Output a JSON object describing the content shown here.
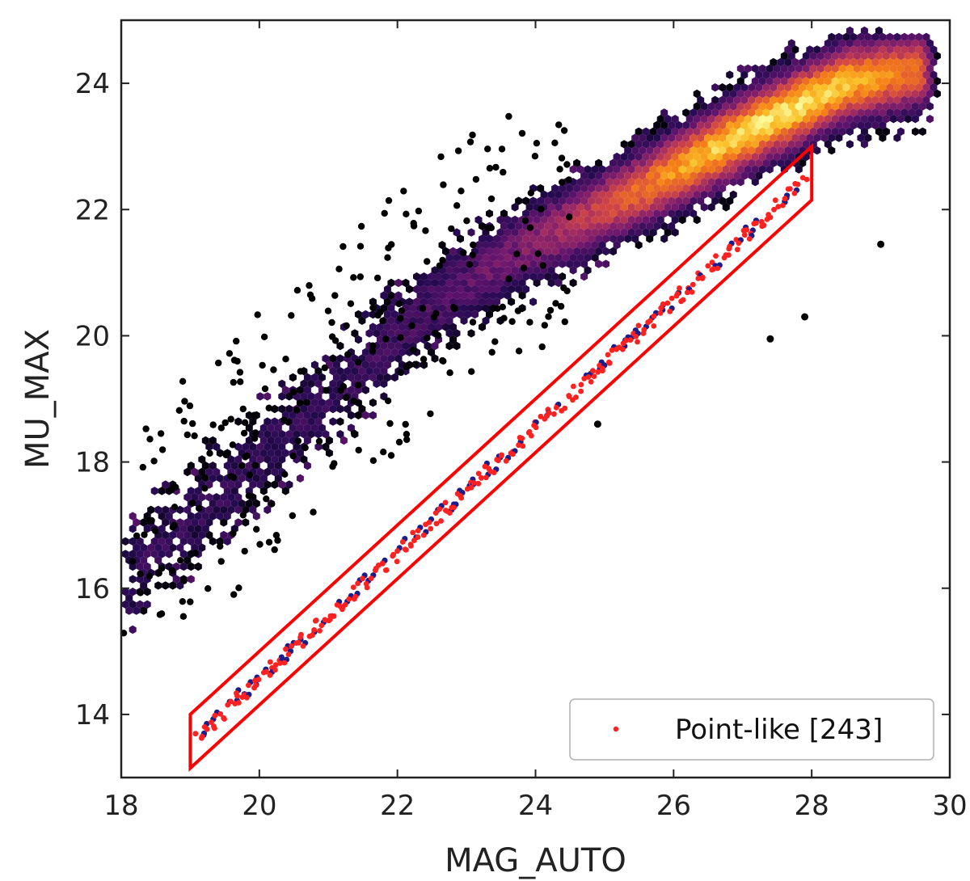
{
  "chart_data": {
    "type": "hexbin-scatter",
    "xlabel": "MAG_AUTO",
    "ylabel": "MU_MAX",
    "xlim": [
      18,
      30
    ],
    "ylim": [
      13,
      25
    ],
    "x_ticks": [
      "18",
      "20",
      "22",
      "24",
      "26",
      "28",
      "30"
    ],
    "y_ticks": [
      "14",
      "16",
      "18",
      "20",
      "22",
      "24"
    ],
    "grid": false,
    "colormap": "inferno",
    "density_ridge": {
      "description_points": [
        [
          19.5,
          17.6
        ],
        [
          21.0,
          19.0
        ],
        [
          22.5,
          20.5
        ],
        [
          24.0,
          21.5
        ],
        [
          25.5,
          22.3
        ],
        [
          27.0,
          23.2
        ],
        [
          28.5,
          24.0
        ],
        [
          29.5,
          24.2
        ]
      ],
      "peak": [
        27.5,
        23.5
      ]
    },
    "selection_region": {
      "color": "#ff0000",
      "polygon": [
        [
          19.0,
          14.0
        ],
        [
          28.0,
          23.0
        ],
        [
          28.0,
          22.15
        ],
        [
          19.0,
          13.15
        ]
      ]
    },
    "point_like": {
      "name": "Point-like [243]",
      "color": "#ff2020",
      "relation": "MU_MAX ≈ MAG_AUTO - 5.45",
      "x_range": [
        19.1,
        27.9
      ]
    },
    "outliers": [
      [
        29.0,
        21.45
      ],
      [
        27.9,
        20.3
      ],
      [
        27.4,
        19.95
      ],
      [
        24.9,
        18.6
      ]
    ],
    "legend": {
      "position": "lower-right",
      "label": "Point-like [243]"
    }
  }
}
